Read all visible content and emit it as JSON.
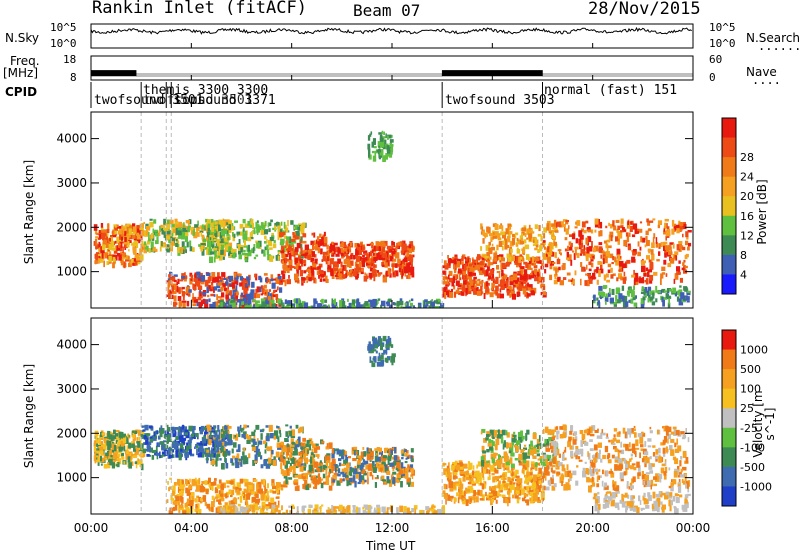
{
  "header": {
    "station": "Rankin Inlet (fitACF)",
    "beam": "Beam 07",
    "date": "28/Nov/2015"
  },
  "noise_panel": {
    "left_label": "N.Sky",
    "right_label": "N.Search",
    "right_dots": "........",
    "left_top_tick": "10^5",
    "left_bottom_tick": "10^0",
    "right_top_tick": "10^5",
    "right_bottom_tick": "10^0"
  },
  "freq_panel": {
    "left_label": "Freq.",
    "left_unit": "[MHz]",
    "left_top_tick": "18",
    "left_bottom_tick": "8",
    "right_label": "Nave",
    "right_dots": "....",
    "right_top_tick": "60",
    "right_bottom_tick": "0"
  },
  "cpid": {
    "label": "CPID",
    "programs": [
      {
        "text": "twofsound 3501",
        "start_hour": 0.0
      },
      {
        "text": "themis 3300 3300",
        "start_hour": 2.0
      },
      {
        "text": "twofsound 3501",
        "start_hour": 3.0
      },
      {
        "text": "tipsound 3371",
        "start_hour": 3.2
      },
      {
        "text": "twofsound 3503",
        "start_hour": 14.0
      },
      {
        "text": "normal (fast) 151",
        "start_hour": 18.0
      }
    ]
  },
  "time_axis": {
    "label": "Time UT",
    "ticks": [
      "00:00",
      "04:00",
      "08:00",
      "12:00",
      "16:00",
      "20:00",
      "00:00"
    ]
  },
  "range_axis": {
    "label": "Slant Range [km]",
    "ticks": [
      "1000",
      "2000",
      "3000",
      "4000"
    ]
  },
  "power_colorbar": {
    "label": "Power [dB]",
    "ticks": [
      "4",
      "8",
      "12",
      "16",
      "20",
      "24",
      "28"
    ],
    "colors": [
      "#1a1aff",
      "#3f5fb5",
      "#3d8a55",
      "#5fbf3f",
      "#e8c020",
      "#f5a020",
      "#f07a18",
      "#ee4a15",
      "#e81a10"
    ]
  },
  "velocity_colorbar": {
    "label": "Velocity [m s^-1]",
    "ticks": [
      "1000",
      "500",
      "100",
      "25",
      "-25",
      "-100",
      "-500",
      "-1000"
    ],
    "colors": [
      "#1f3fc8",
      "#3f6cb0",
      "#3d8a55",
      "#5fbf3f",
      "#c0c0c0",
      "#f5c020",
      "#f5a020",
      "#f07a18",
      "#e81a10"
    ]
  },
  "chart_data": [
    {
      "type": "line",
      "title": "N.Sky / N.Search noise",
      "xlabel": "Time UT",
      "x_range_hours": [
        0,
        24
      ],
      "y_scale": "log",
      "ylim": [
        1,
        100000
      ],
      "approx_level": 10000
    },
    {
      "type": "line",
      "title": "Frequency / Nave",
      "ylim_freq_mhz": [
        8,
        18
      ],
      "ylim_nave": [
        0,
        60
      ],
      "freq_mhz_segments": [
        {
          "start": 0.0,
          "end": 1.8,
          "value": 12.0
        },
        {
          "start": 1.8,
          "end": 14.0,
          "value": 10.5
        },
        {
          "start": 14.0,
          "end": 18.0,
          "value": 12.0
        },
        {
          "start": 18.0,
          "end": 24.0,
          "value": 10.5
        }
      ]
    },
    {
      "type": "heatmap",
      "title": "Power [dB]",
      "xlabel": "Time UT",
      "ylabel": "Slant Range [km]",
      "x_range_hours": [
        0,
        24
      ],
      "ylim_km": [
        180,
        4600
      ],
      "colorbar_range_db": [
        0,
        30
      ]
    },
    {
      "type": "heatmap",
      "title": "Velocity [m s^-1]",
      "xlabel": "Time UT",
      "ylabel": "Slant Range [km]",
      "x_range_hours": [
        0,
        24
      ],
      "ylim_km": [
        180,
        4600
      ],
      "colorbar_range_ms": [
        -1000,
        1000
      ]
    }
  ]
}
